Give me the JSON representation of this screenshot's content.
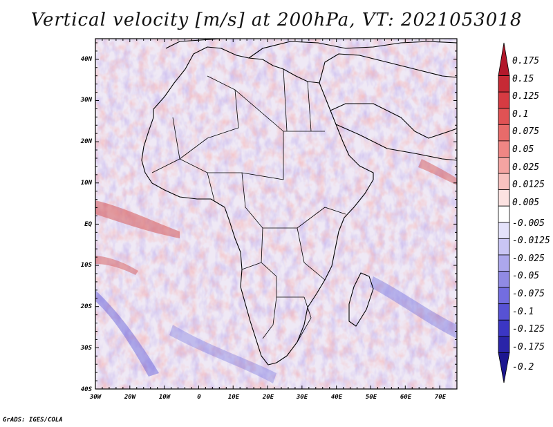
{
  "title": "Vertical velocity [m/s] at 200hPa, VT: 2021053018",
  "credit": "GrADS: IGES/COLA",
  "map": {
    "lon_labels": [
      "30W",
      "20W",
      "10W",
      "0",
      "10E",
      "20E",
      "30E",
      "40E",
      "50E",
      "60E",
      "70E"
    ],
    "lat_labels": [
      "40N",
      "30N",
      "20N",
      "10N",
      "EQ",
      "10S",
      "20S",
      "30S",
      "40S"
    ],
    "lon_range": [
      -30,
      75
    ],
    "lat_range": [
      -40,
      45
    ],
    "field": "vertical velocity",
    "level": "200hPa"
  },
  "colorbar": {
    "labels": [
      "0.175",
      "0.15",
      "0.125",
      "0.1",
      "0.075",
      "0.05",
      "0.025",
      "0.0125",
      "0.005",
      "-0.005",
      "-0.0125",
      "-0.025",
      "-0.05",
      "-0.075",
      "-0.1",
      "-0.125",
      "-0.175",
      "-0.2"
    ],
    "colors": [
      "#b2182b",
      "#c62a35",
      "#d63b42",
      "#e05254",
      "#e86b6a",
      "#ef8684",
      "#f4a4a2",
      "#f8c2c0",
      "#fce2e1",
      "#ffffff",
      "#e4e2fb",
      "#c9c5f4",
      "#aca7ec",
      "#908ae4",
      "#736de0",
      "#5752d4",
      "#3b36c4",
      "#2a24a8",
      "#1c1690"
    ]
  }
}
